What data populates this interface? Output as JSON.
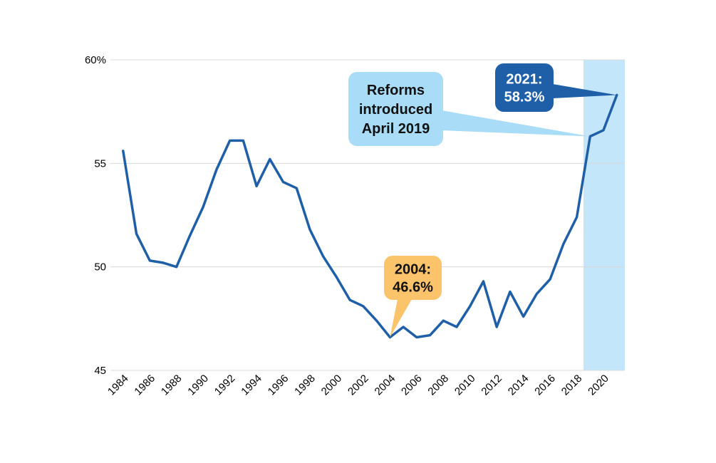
{
  "chart_data": {
    "type": "line",
    "title": "",
    "xlabel": "",
    "ylabel": "",
    "ylim": [
      45,
      60
    ],
    "yticks": [
      45,
      50,
      55,
      60
    ],
    "ytick_labels": [
      "45",
      "50",
      "55",
      "60%"
    ],
    "xtick_labels": [
      "1984",
      "1986",
      "1988",
      "1990",
      "1992",
      "1994",
      "1996",
      "1998",
      "2000",
      "2002",
      "2004",
      "2006",
      "2008",
      "2010",
      "2012",
      "2014",
      "2016",
      "2018",
      "2020"
    ],
    "grid": true,
    "line_color": "#1f5fa8",
    "x": [
      1984,
      1985,
      1986,
      1987,
      1988,
      1989,
      1990,
      1991,
      1992,
      1993,
      1994,
      1995,
      1996,
      1997,
      1998,
      1999,
      2000,
      2001,
      2002,
      2003,
      2004,
      2005,
      2006,
      2007,
      2008,
      2009,
      2010,
      2011,
      2012,
      2013,
      2014,
      2015,
      2016,
      2017,
      2018,
      2019,
      2020,
      2021
    ],
    "values": [
      55.6,
      51.6,
      50.3,
      50.2,
      50.0,
      51.5,
      52.9,
      54.7,
      56.1,
      56.1,
      53.9,
      55.2,
      54.1,
      53.8,
      51.8,
      50.5,
      49.5,
      48.4,
      48.1,
      47.4,
      46.6,
      47.1,
      46.6,
      46.7,
      47.4,
      47.1,
      48.1,
      49.3,
      47.1,
      48.8,
      47.6,
      48.7,
      49.4,
      51.1,
      52.4,
      56.3,
      56.6,
      58.3
    ],
    "shaded_region": {
      "from": 2018.5,
      "to": 2021.6,
      "color": "#c4e6fa"
    },
    "annotations": [
      {
        "id": "reforms",
        "lines": [
          "Reforms",
          "introduced",
          "April 2019"
        ],
        "fill": "#a9dcf6",
        "text_color": "#111111",
        "point_x": 2019,
        "point_y": 56.3
      },
      {
        "id": "peak2021",
        "lines": [
          "2021:",
          "58.3%"
        ],
        "fill": "#1f5fa8",
        "text_color": "#ffffff",
        "point_x": 2021,
        "point_y": 58.3
      },
      {
        "id": "low2004",
        "lines": [
          "2004:",
          "46.6%"
        ],
        "fill": "#fcc46a",
        "text_color": "#111111",
        "point_x": 2004,
        "point_y": 46.6
      }
    ]
  }
}
